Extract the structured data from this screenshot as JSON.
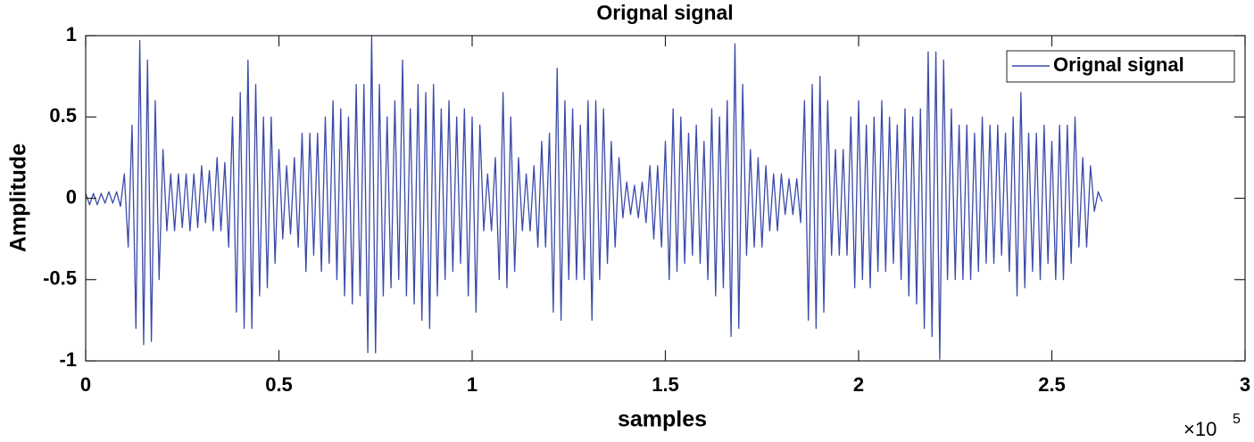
{
  "chart_data": {
    "type": "line",
    "title": "Orignal signal",
    "xlabel": "samples",
    "ylabel": "Amplitude",
    "x_multiplier": "×10",
    "x_multiplier_exponent": "5",
    "xlim": [
      0,
      3
    ],
    "ylim": [
      -1,
      1
    ],
    "xticks": [
      0,
      0.5,
      1,
      1.5,
      2,
      2.5,
      3
    ],
    "yticks": [
      -1,
      -0.5,
      0,
      0.5,
      1
    ],
    "grid": false,
    "legend": "northeast",
    "x": [
      0,
      0.01,
      0.02,
      0.03,
      0.04,
      0.05,
      0.06,
      0.07,
      0.08,
      0.09,
      0.1,
      0.11,
      0.12,
      0.13,
      0.14,
      0.15,
      0.16,
      0.17,
      0.18,
      0.19,
      0.2,
      0.21,
      0.22,
      0.23,
      0.24,
      0.25,
      0.26,
      0.27,
      0.28,
      0.29,
      0.3,
      0.31,
      0.32,
      0.33,
      0.34,
      0.35,
      0.36,
      0.37,
      0.38,
      0.39,
      0.4,
      0.41,
      0.42,
      0.43,
      0.44,
      0.45,
      0.46,
      0.47,
      0.48,
      0.49,
      0.5,
      0.51,
      0.52,
      0.53,
      0.54,
      0.55,
      0.56,
      0.57,
      0.58,
      0.59,
      0.6,
      0.61,
      0.62,
      0.63,
      0.64,
      0.65,
      0.66,
      0.67,
      0.68,
      0.69,
      0.7,
      0.71,
      0.72,
      0.73,
      0.74,
      0.75,
      0.76,
      0.77,
      0.78,
      0.79,
      0.8,
      0.81,
      0.82,
      0.83,
      0.84,
      0.85,
      0.86,
      0.87,
      0.88,
      0.89,
      0.9,
      0.91,
      0.92,
      0.93,
      0.94,
      0.95,
      0.96,
      0.97,
      0.98,
      0.99,
      1,
      1.01,
      1.02,
      1.03,
      1.04,
      1.05,
      1.06,
      1.07,
      1.08,
      1.09,
      1.1,
      1.11,
      1.12,
      1.13,
      1.14,
      1.15,
      1.16,
      1.17,
      1.18,
      1.19,
      1.2,
      1.21,
      1.22,
      1.23,
      1.24,
      1.25,
      1.26,
      1.27,
      1.28,
      1.29,
      1.3,
      1.31,
      1.32,
      1.33,
      1.34,
      1.35,
      1.36,
      1.37,
      1.38,
      1.39,
      1.4,
      1.41,
      1.42,
      1.43,
      1.44,
      1.45,
      1.46,
      1.47,
      1.48,
      1.49,
      1.5,
      1.51,
      1.52,
      1.53,
      1.54,
      1.55,
      1.56,
      1.57,
      1.58,
      1.59,
      1.6,
      1.61,
      1.62,
      1.63,
      1.64,
      1.65,
      1.66,
      1.67,
      1.68,
      1.69,
      1.7,
      1.71,
      1.72,
      1.73,
      1.74,
      1.75,
      1.76,
      1.77,
      1.78,
      1.79,
      1.8,
      1.81,
      1.82,
      1.83,
      1.84,
      1.85,
      1.86,
      1.87,
      1.88,
      1.89,
      1.9,
      1.91,
      1.92,
      1.93,
      1.94,
      1.95,
      1.96,
      1.97,
      1.98,
      1.99,
      2,
      2.01,
      2.02,
      2.03,
      2.04,
      2.05,
      2.06,
      2.07,
      2.08,
      2.09,
      2.1,
      2.11,
      2.12,
      2.13,
      2.14,
      2.15,
      2.16,
      2.17,
      2.18,
      2.19,
      2.2,
      2.21,
      2.22,
      2.23,
      2.24,
      2.25,
      2.26,
      2.27,
      2.28,
      2.29,
      2.3,
      2.31,
      2.32,
      2.33,
      2.34,
      2.35,
      2.36,
      2.37,
      2.38,
      2.39,
      2.4,
      2.41,
      2.42,
      2.43,
      2.44,
      2.45,
      2.46,
      2.47,
      2.48,
      2.49,
      2.5,
      2.51,
      2.52,
      2.53,
      2.54,
      2.55,
      2.56,
      2.57,
      2.58,
      2.59,
      2.6,
      2.61,
      2.62,
      2.63
    ],
    "series": [
      {
        "name": "Orignal signal",
        "color": "#3a4aa8",
        "values": [
          0.03,
          -0.04,
          0.03,
          -0.04,
          0.03,
          -0.03,
          0.04,
          -0.03,
          0.04,
          -0.05,
          0.15,
          -0.3,
          0.45,
          -0.8,
          0.97,
          -0.9,
          0.85,
          -0.88,
          0.6,
          -0.5,
          0.3,
          -0.2,
          0.15,
          -0.2,
          0.15,
          -0.18,
          0.15,
          -0.2,
          0.15,
          -0.18,
          0.2,
          -0.15,
          0.17,
          -0.2,
          0.25,
          -0.2,
          0.22,
          -0.3,
          0.5,
          -0.7,
          0.65,
          -0.8,
          0.85,
          -0.8,
          0.7,
          -0.6,
          0.5,
          -0.55,
          0.5,
          -0.4,
          0.3,
          -0.25,
          0.2,
          -0.22,
          0.25,
          -0.3,
          0.4,
          -0.45,
          0.4,
          -0.35,
          0.4,
          -0.45,
          0.5,
          -0.4,
          0.6,
          -0.5,
          0.55,
          -0.6,
          0.5,
          -0.65,
          0.7,
          -0.6,
          0.7,
          -0.95,
          1.0,
          -0.95,
          0.7,
          -0.6,
          0.5,
          -0.55,
          0.6,
          -0.5,
          0.85,
          -0.6,
          0.55,
          -0.65,
          0.7,
          -0.75,
          0.65,
          -0.8,
          0.7,
          -0.6,
          0.55,
          -0.5,
          0.6,
          -0.45,
          0.5,
          -0.4,
          0.55,
          -0.6,
          0.5,
          -0.7,
          0.45,
          -0.2,
          0.15,
          -0.2,
          0.25,
          -0.5,
          0.65,
          -0.55,
          0.5,
          -0.45,
          0.25,
          -0.2,
          0.15,
          -0.2,
          0.2,
          -0.3,
          0.35,
          -0.3,
          0.4,
          -0.7,
          0.8,
          -0.75,
          0.6,
          -0.5,
          0.55,
          -0.5,
          0.45,
          -0.5,
          0.6,
          -0.75,
          0.6,
          -0.5,
          0.55,
          -0.4,
          0.35,
          -0.3,
          0.25,
          -0.12,
          0.1,
          -0.1,
          0.08,
          -0.12,
          0.1,
          -0.15,
          0.2,
          -0.25,
          0.2,
          -0.3,
          0.35,
          -0.5,
          0.55,
          -0.45,
          0.5,
          -0.4,
          0.4,
          -0.35,
          0.45,
          -0.4,
          0.35,
          -0.5,
          0.55,
          -0.6,
          0.5,
          -0.55,
          0.6,
          -0.85,
          0.95,
          -0.8,
          0.7,
          -0.35,
          0.3,
          -0.3,
          0.25,
          -0.3,
          0.2,
          -0.2,
          0.15,
          -0.2,
          0.15,
          -0.1,
          0.12,
          -0.1,
          0.12,
          -0.15,
          0.6,
          -0.75,
          0.7,
          -0.8,
          0.75,
          -0.7,
          0.6,
          -0.35,
          0.3,
          -0.35,
          0.3,
          -0.35,
          0.5,
          -0.55,
          0.6,
          -0.5,
          0.45,
          -0.55,
          0.5,
          -0.45,
          0.6,
          -0.45,
          0.5,
          -0.4,
          0.45,
          -0.5,
          0.55,
          -0.6,
          0.5,
          -0.65,
          0.55,
          -0.8,
          0.9,
          -0.85,
          0.9,
          -0.99,
          0.85,
          -0.5,
          0.55,
          -0.5,
          0.45,
          -0.5,
          0.45,
          -0.5,
          0.4,
          -0.45,
          0.5,
          -0.4,
          0.45,
          -0.4,
          0.45,
          -0.35,
          0.4,
          -0.45,
          0.5,
          -0.6,
          0.65,
          -0.55,
          0.4,
          -0.45,
          0.4,
          -0.5,
          0.45,
          -0.4,
          0.35,
          -0.5,
          0.45,
          -0.5,
          0.45,
          -0.4,
          0.5,
          -0.3,
          0.25,
          -0.3,
          0.2,
          -0.08,
          0.04,
          -0.02
        ]
      }
    ]
  }
}
